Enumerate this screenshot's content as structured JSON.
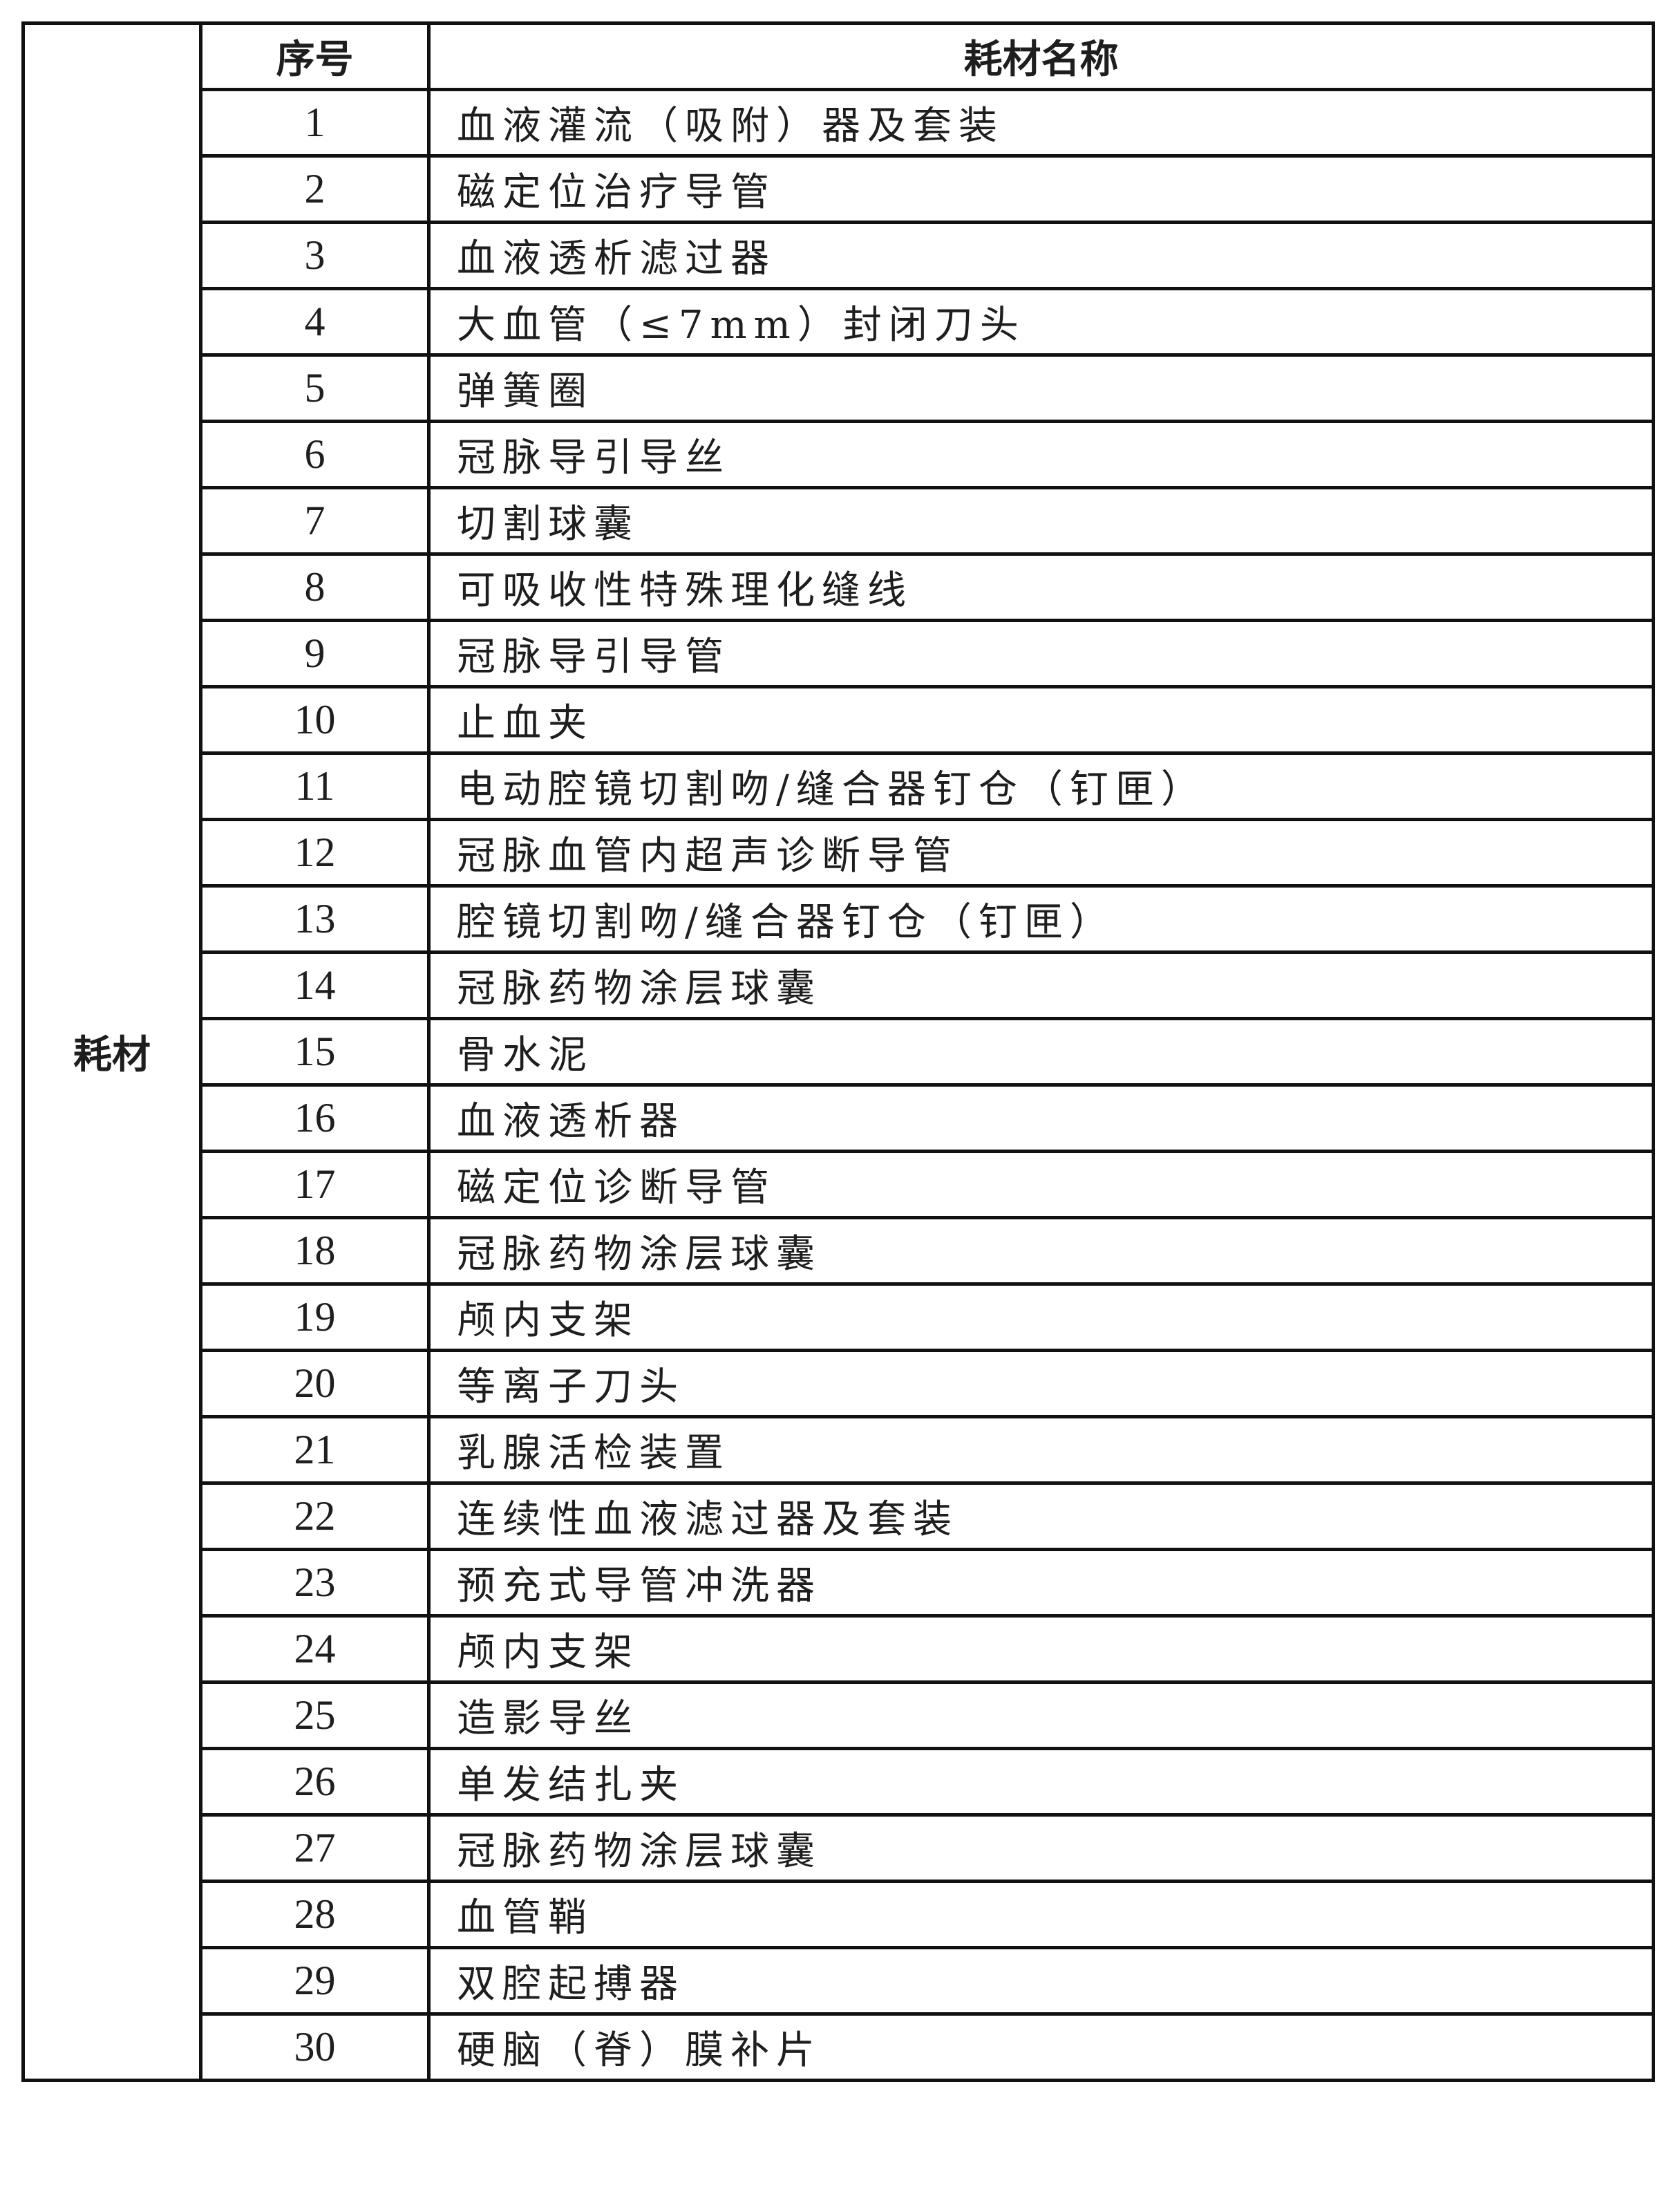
{
  "table": {
    "category": "耗材",
    "headers": {
      "index": "序号",
      "name": "耗材名称"
    },
    "rows": [
      {
        "no": "1",
        "name": "血液灌流（吸附）器及套装"
      },
      {
        "no": "2",
        "name": "磁定位治疗导管"
      },
      {
        "no": "3",
        "name": "血液透析滤过器"
      },
      {
        "no": "4",
        "name": "大血管（≤7mm）封闭刀头"
      },
      {
        "no": "5",
        "name": "弹簧圈"
      },
      {
        "no": "6",
        "name": "冠脉导引导丝"
      },
      {
        "no": "7",
        "name": "切割球囊"
      },
      {
        "no": "8",
        "name": "可吸收性特殊理化缝线"
      },
      {
        "no": "9",
        "name": "冠脉导引导管"
      },
      {
        "no": "10",
        "name": "止血夹"
      },
      {
        "no": "11",
        "name": "电动腔镜切割吻/缝合器钉仓（钉匣）"
      },
      {
        "no": "12",
        "name": "冠脉血管内超声诊断导管"
      },
      {
        "no": "13",
        "name": "腔镜切割吻/缝合器钉仓（钉匣）"
      },
      {
        "no": "14",
        "name": "冠脉药物涂层球囊"
      },
      {
        "no": "15",
        "name": "骨水泥"
      },
      {
        "no": "16",
        "name": "血液透析器"
      },
      {
        "no": "17",
        "name": "磁定位诊断导管"
      },
      {
        "no": "18",
        "name": "冠脉药物涂层球囊"
      },
      {
        "no": "19",
        "name": "颅内支架"
      },
      {
        "no": "20",
        "name": "等离子刀头"
      },
      {
        "no": "21",
        "name": "乳腺活检装置"
      },
      {
        "no": "22",
        "name": "连续性血液滤过器及套装"
      },
      {
        "no": "23",
        "name": "预充式导管冲洗器"
      },
      {
        "no": "24",
        "name": "颅内支架"
      },
      {
        "no": "25",
        "name": "造影导丝"
      },
      {
        "no": "26",
        "name": "单发结扎夹"
      },
      {
        "no": "27",
        "name": "冠脉药物涂层球囊"
      },
      {
        "no": "28",
        "name": "血管鞘"
      },
      {
        "no": "29",
        "name": "双腔起搏器"
      },
      {
        "no": "30",
        "name": "硬脑（脊）膜补片"
      }
    ]
  }
}
